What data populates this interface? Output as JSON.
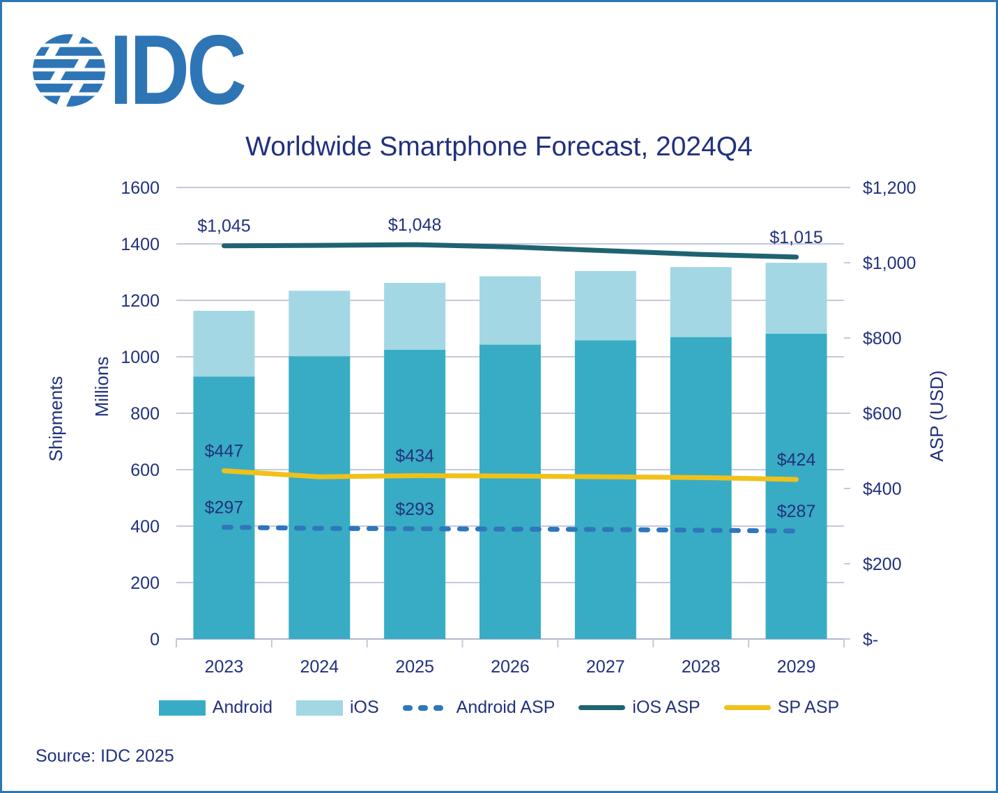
{
  "logo": {
    "text": "IDC"
  },
  "footer": {
    "source": "Source: IDC 2025"
  },
  "colors": {
    "android": "#38ACC4",
    "ios": "#A3D7E3",
    "android_asp": "#2F76BC",
    "ios_asp": "#1F6372",
    "sp_asp": "#F0C11A",
    "text_navy": "#22307E",
    "gridline": "#C4C8DD",
    "axis_line": "#AFB6CF",
    "idc_blue": "#2E75B6"
  },
  "chart_data": {
    "type": "bar",
    "subtype": "stacked-bars-with-lines",
    "title": "Worldwide Smartphone Forecast, 2024Q4",
    "categories": [
      "2023",
      "2024",
      "2025",
      "2026",
      "2027",
      "2028",
      "2029"
    ],
    "bar_series": [
      {
        "name": "Android",
        "axis": "left",
        "color_key": "android",
        "values": [
          930,
          1002,
          1025,
          1043,
          1058,
          1070,
          1082
        ]
      },
      {
        "name": "iOS",
        "axis": "left",
        "color_key": "ios",
        "values": [
          233,
          232,
          237,
          242,
          246,
          248,
          251
        ]
      }
    ],
    "line_series": [
      {
        "name": "Android ASP",
        "axis": "right",
        "color_key": "android_asp",
        "dash": true,
        "values": [
          297,
          294,
          293,
          292,
          291,
          289,
          287
        ],
        "labels": {
          "0": "$297",
          "2": "$293",
          "6": "$287"
        }
      },
      {
        "name": "iOS ASP",
        "axis": "right",
        "color_key": "ios_asp",
        "dash": false,
        "values": [
          1045,
          1046,
          1048,
          1042,
          1032,
          1022,
          1015
        ],
        "labels": {
          "0": "$1,045",
          "2": "$1,048",
          "6": "$1,015"
        }
      },
      {
        "name": "SP ASP",
        "axis": "right",
        "color_key": "sp_asp",
        "dash": false,
        "values": [
          447,
          431,
          434,
          433,
          431,
          429,
          424
        ],
        "labels": {
          "0": "$447",
          "2": "$434",
          "6": "$424"
        }
      }
    ],
    "left_axis": {
      "title": "Shipments",
      "units": "Millions",
      "min": 0,
      "max": 1600,
      "step": 200,
      "tick_labels": [
        "0",
        "200",
        "400",
        "600",
        "800",
        "1000",
        "1200",
        "1400",
        "1600"
      ]
    },
    "right_axis": {
      "title": "ASP (USD)",
      "min": 0,
      "max": 1200,
      "step": 200,
      "tick_labels": [
        "$-",
        "$200",
        "$400",
        "$600",
        "$800",
        "$1,000",
        "$1,200"
      ]
    },
    "legend": [
      "Android",
      "iOS",
      "Android ASP",
      "iOS ASP",
      "SP ASP"
    ],
    "grid": "horizontal gridlines on",
    "legend_position": "bottom"
  }
}
